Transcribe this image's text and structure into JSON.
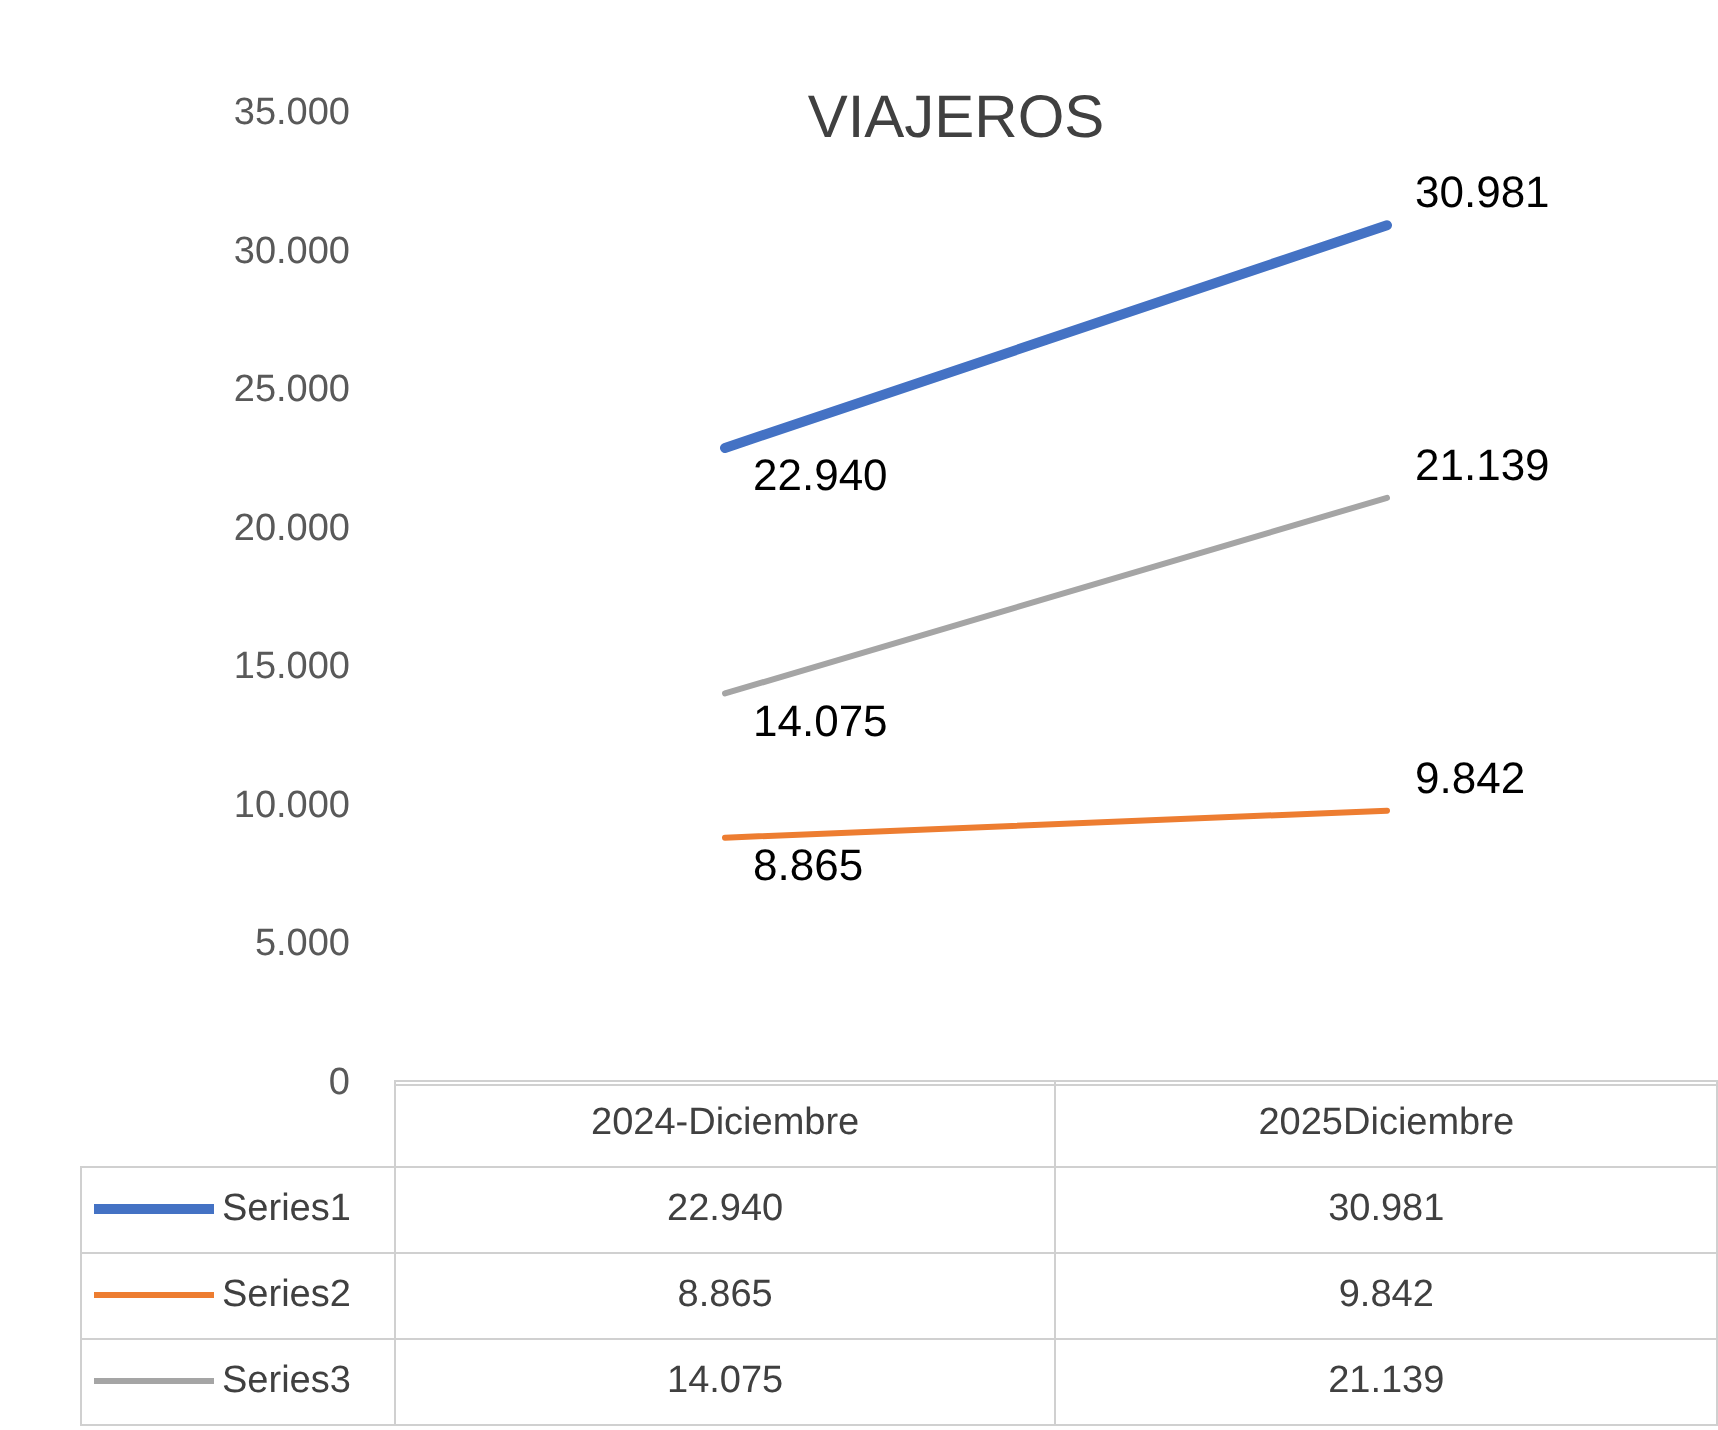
{
  "chart_data": {
    "type": "line",
    "title": "VIAJEROS",
    "categories": [
      "2024-Diciembre",
      "2025Diciembre"
    ],
    "series": [
      {
        "name": "Series1",
        "color": "#4472c4",
        "values": [
          22940,
          30981
        ],
        "value_labels": [
          "22.940",
          "30.981"
        ]
      },
      {
        "name": "Series2",
        "color": "#ed7d31",
        "values": [
          8865,
          9842
        ],
        "value_labels": [
          "8.865",
          "9.842"
        ]
      },
      {
        "name": "Series3",
        "color": "#a5a5a5",
        "values": [
          14075,
          21139
        ],
        "value_labels": [
          "14.075",
          "21.139"
        ]
      }
    ],
    "ylim": [
      0,
      35000
    ],
    "yticks": [
      0,
      {
        "value": 5000,
        "label": "5.000"
      },
      {
        "value": 10000,
        "label": "10.000"
      },
      {
        "value": 15000,
        "label": "15.000"
      },
      {
        "value": 20000,
        "label": "20.000"
      },
      {
        "value": 25000,
        "label": "25.000"
      },
      {
        "value": 30000,
        "label": "30.000"
      },
      {
        "value": 35000,
        "label": "35.000"
      }
    ],
    "grid": false,
    "legend": "bottom",
    "marker": "none"
  }
}
